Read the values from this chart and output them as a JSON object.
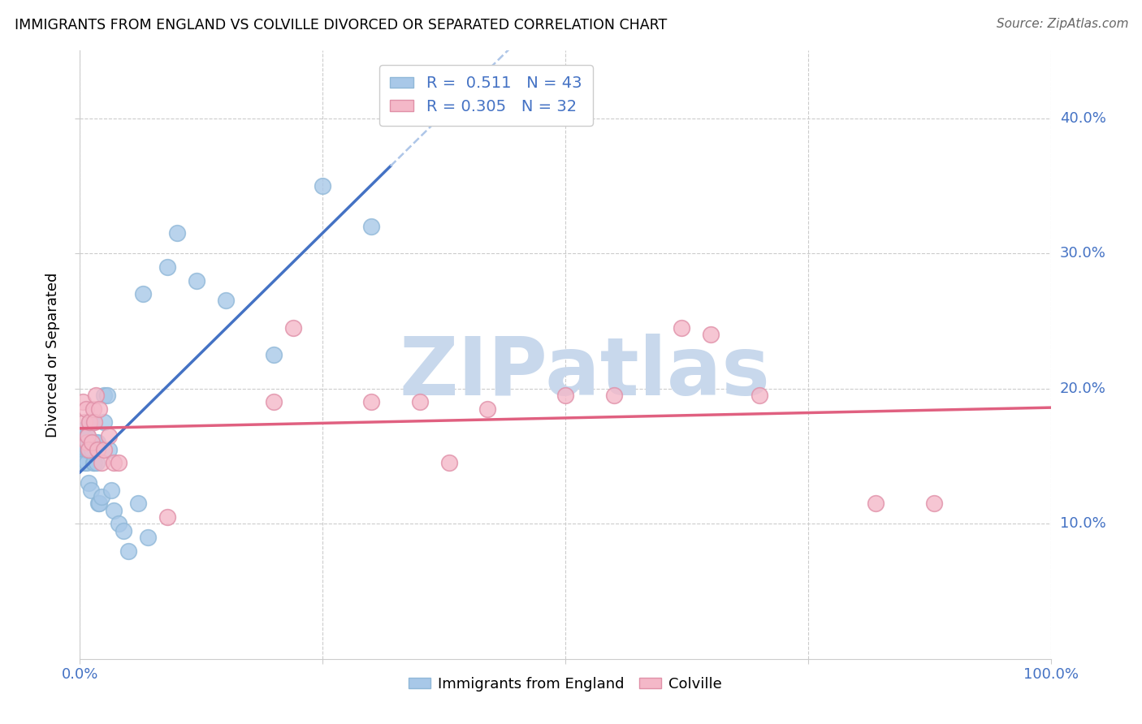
{
  "title": "IMMIGRANTS FROM ENGLAND VS COLVILLE DIVORCED OR SEPARATED CORRELATION CHART",
  "source": "Source: ZipAtlas.com",
  "ylabel": "Divorced or Separated",
  "legend_bottom_labels": [
    "Immigrants from England",
    "Colville"
  ],
  "blue_R": "0.511",
  "blue_N": "43",
  "pink_R": "0.305",
  "pink_N": "32",
  "xlim": [
    0.0,
    1.0
  ],
  "ylim": [
    0.0,
    0.45
  ],
  "xtick_positions": [
    0.0,
    0.25,
    0.5,
    0.75,
    1.0
  ],
  "xtick_labels": [
    "0.0%",
    "",
    "",
    "",
    "100.0%"
  ],
  "ytick_positions": [
    0.1,
    0.2,
    0.3,
    0.4
  ],
  "ytick_labels": [
    "10.0%",
    "20.0%",
    "30.0%",
    "40.0%"
  ],
  "blue_scatter_color": "#a8c8e8",
  "pink_scatter_color": "#f4b8c8",
  "blue_line_color": "#4472c4",
  "pink_line_color": "#e06080",
  "dash_color": "#aec6e8",
  "axis_label_color": "#4472c4",
  "watermark_text": "ZIPatlas",
  "watermark_color": "#c8d8ec",
  "background_color": "#ffffff",
  "grid_color": "#cccccc",
  "blue_points_x": [
    0.003,
    0.004,
    0.005,
    0.005,
    0.006,
    0.007,
    0.007,
    0.008,
    0.008,
    0.009,
    0.009,
    0.01,
    0.01,
    0.011,
    0.012,
    0.013,
    0.014,
    0.015,
    0.016,
    0.017,
    0.018,
    0.019,
    0.02,
    0.022,
    0.025,
    0.025,
    0.028,
    0.03,
    0.032,
    0.035,
    0.04,
    0.045,
    0.05,
    0.06,
    0.065,
    0.07,
    0.09,
    0.1,
    0.12,
    0.15,
    0.2,
    0.25,
    0.3
  ],
  "blue_points_y": [
    0.155,
    0.165,
    0.17,
    0.145,
    0.155,
    0.145,
    0.165,
    0.155,
    0.16,
    0.13,
    0.155,
    0.155,
    0.175,
    0.125,
    0.155,
    0.175,
    0.145,
    0.145,
    0.16,
    0.145,
    0.16,
    0.115,
    0.115,
    0.12,
    0.195,
    0.175,
    0.195,
    0.155,
    0.125,
    0.11,
    0.1,
    0.095,
    0.08,
    0.115,
    0.27,
    0.09,
    0.29,
    0.315,
    0.28,
    0.265,
    0.225,
    0.35,
    0.32
  ],
  "pink_points_x": [
    0.003,
    0.005,
    0.006,
    0.007,
    0.008,
    0.009,
    0.01,
    0.012,
    0.014,
    0.015,
    0.016,
    0.018,
    0.02,
    0.022,
    0.025,
    0.03,
    0.035,
    0.04,
    0.09,
    0.2,
    0.22,
    0.3,
    0.35,
    0.38,
    0.42,
    0.5,
    0.55,
    0.62,
    0.65,
    0.7,
    0.82,
    0.88
  ],
  "pink_points_y": [
    0.19,
    0.175,
    0.185,
    0.16,
    0.165,
    0.155,
    0.175,
    0.16,
    0.185,
    0.175,
    0.195,
    0.155,
    0.185,
    0.145,
    0.155,
    0.165,
    0.145,
    0.145,
    0.105,
    0.19,
    0.245,
    0.19,
    0.19,
    0.145,
    0.185,
    0.195,
    0.195,
    0.245,
    0.24,
    0.195,
    0.115,
    0.115
  ],
  "blue_line_solid_xrange": [
    0.0,
    0.32
  ],
  "blue_line_dash_xrange": [
    0.32,
    1.0
  ]
}
